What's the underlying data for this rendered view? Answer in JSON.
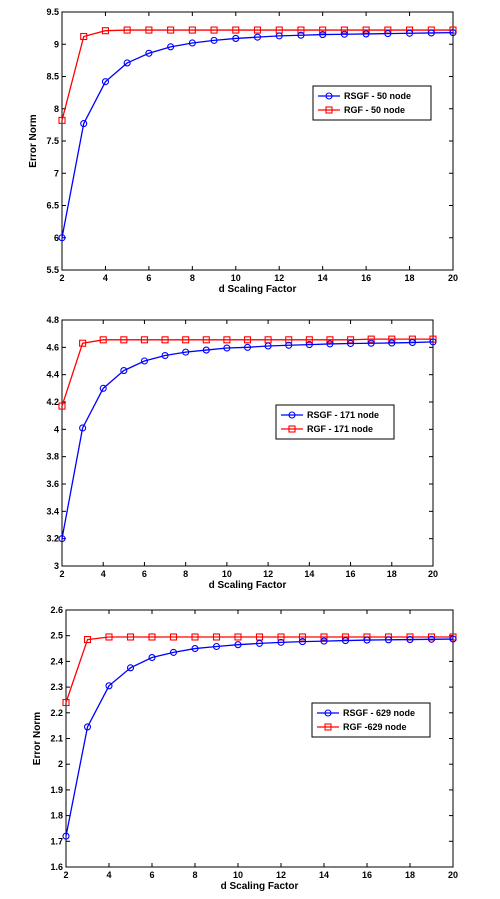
{
  "chart_data": [
    {
      "type": "line",
      "xlabel": "d Scaling Factor",
      "ylabel": "Error Norm",
      "xlim": [
        2,
        20
      ],
      "ylim": [
        5.5,
        9.5
      ],
      "xticks": [
        2,
        4,
        6,
        8,
        10,
        12,
        14,
        16,
        18,
        20
      ],
      "xtick_labels": [
        "2",
        "4",
        "6",
        "8",
        "10",
        "12",
        "14",
        "16",
        "18",
        "20"
      ],
      "yticks": [
        5.5,
        6,
        6.5,
        7,
        7.5,
        8,
        8.5,
        9,
        9.5
      ],
      "ytick_labels": [
        "5.5",
        "6",
        "6.5",
        "7",
        "7.5",
        "8",
        "8.5",
        "9",
        "9.5"
      ],
      "grid": false,
      "legend_position": "right",
      "x": [
        2,
        3,
        4,
        5,
        6,
        7,
        8,
        9,
        10,
        11,
        12,
        13,
        14,
        15,
        16,
        17,
        18,
        19,
        20
      ],
      "series": [
        {
          "name": "RSGF - 50 node",
          "color": "#0000ff",
          "marker": "circle",
          "values": [
            6.0,
            7.77,
            8.42,
            8.71,
            8.86,
            8.96,
            9.02,
            9.06,
            9.09,
            9.11,
            9.13,
            9.14,
            9.15,
            9.155,
            9.16,
            9.165,
            9.17,
            9.175,
            9.18
          ]
        },
        {
          "name": "RGF - 50 node",
          "color": "#ff0000",
          "marker": "square",
          "values": [
            7.82,
            9.12,
            9.21,
            9.22,
            9.22,
            9.22,
            9.22,
            9.22,
            9.22,
            9.22,
            9.22,
            9.22,
            9.22,
            9.22,
            9.22,
            9.22,
            9.22,
            9.22,
            9.22
          ]
        }
      ]
    },
    {
      "type": "line",
      "xlabel": "d Scaling Factor",
      "ylabel": "",
      "xlim": [
        2,
        20
      ],
      "ylim": [
        3,
        4.8
      ],
      "xticks": [
        2,
        4,
        6,
        8,
        10,
        12,
        14,
        16,
        18,
        20
      ],
      "xtick_labels": [
        "2",
        "4",
        "6",
        "8",
        "10",
        "12",
        "14",
        "16",
        "18",
        "20"
      ],
      "yticks": [
        3,
        3.2,
        3.4,
        3.6,
        3.8,
        4,
        4.2,
        4.4,
        4.6,
        4.8
      ],
      "ytick_labels": [
        "3",
        "3.2",
        "3.4",
        "3.6",
        "3.8",
        "4",
        "4.2",
        "4.4",
        "4.6",
        "4.8"
      ],
      "grid": false,
      "legend_position": "center-right",
      "x": [
        2,
        3,
        4,
        5,
        6,
        7,
        8,
        9,
        10,
        11,
        12,
        13,
        14,
        15,
        16,
        17,
        18,
        19,
        20
      ],
      "series": [
        {
          "name": "RSGF - 171 node",
          "color": "#0000ff",
          "marker": "circle",
          "values": [
            3.2,
            4.01,
            4.3,
            4.43,
            4.5,
            4.54,
            4.565,
            4.58,
            4.595,
            4.6,
            4.61,
            4.615,
            4.62,
            4.625,
            4.628,
            4.63,
            4.632,
            4.635,
            4.64
          ]
        },
        {
          "name": "RGF - 171 node",
          "color": "#ff0000",
          "marker": "square",
          "values": [
            4.17,
            4.63,
            4.655,
            4.655,
            4.655,
            4.655,
            4.655,
            4.655,
            4.655,
            4.655,
            4.655,
            4.655,
            4.655,
            4.655,
            4.655,
            4.66,
            4.66,
            4.66,
            4.66
          ]
        }
      ]
    },
    {
      "type": "line",
      "xlabel": "d Scaling Factor",
      "ylabel": "Error Norm",
      "xlim": [
        2,
        20
      ],
      "ylim": [
        1.6,
        2.6
      ],
      "xticks": [
        2,
        4,
        6,
        8,
        10,
        12,
        14,
        16,
        18,
        20
      ],
      "xtick_labels": [
        "2",
        "4",
        "6",
        "8",
        "10",
        "12",
        "14",
        "16",
        "18",
        "20"
      ],
      "yticks": [
        1.6,
        1.7,
        1.8,
        1.9,
        2,
        2.1,
        2.2,
        2.3,
        2.4,
        2.5,
        2.6
      ],
      "ytick_labels": [
        "1.6",
        "1.7",
        "1.8",
        "1.9",
        "2",
        "2.1",
        "2.2",
        "2.3",
        "2.4",
        "2.5",
        "2.6"
      ],
      "grid": false,
      "legend_position": "center-right",
      "x": [
        2,
        3,
        4,
        5,
        6,
        7,
        8,
        9,
        10,
        11,
        12,
        13,
        14,
        15,
        16,
        17,
        18,
        19,
        20
      ],
      "series": [
        {
          "name": "RSGF - 629 node",
          "color": "#0000ff",
          "marker": "circle",
          "values": [
            1.72,
            2.145,
            2.305,
            2.375,
            2.415,
            2.435,
            2.45,
            2.458,
            2.465,
            2.47,
            2.474,
            2.477,
            2.479,
            2.481,
            2.483,
            2.484,
            2.485,
            2.486,
            2.487
          ]
        },
        {
          "name": "RGF -629 node",
          "color": "#ff0000",
          "marker": "square",
          "values": [
            2.24,
            2.485,
            2.495,
            2.495,
            2.495,
            2.495,
            2.495,
            2.495,
            2.495,
            2.495,
            2.495,
            2.495,
            2.495,
            2.495,
            2.495,
            2.495,
            2.495,
            2.495,
            2.495
          ]
        }
      ]
    }
  ]
}
